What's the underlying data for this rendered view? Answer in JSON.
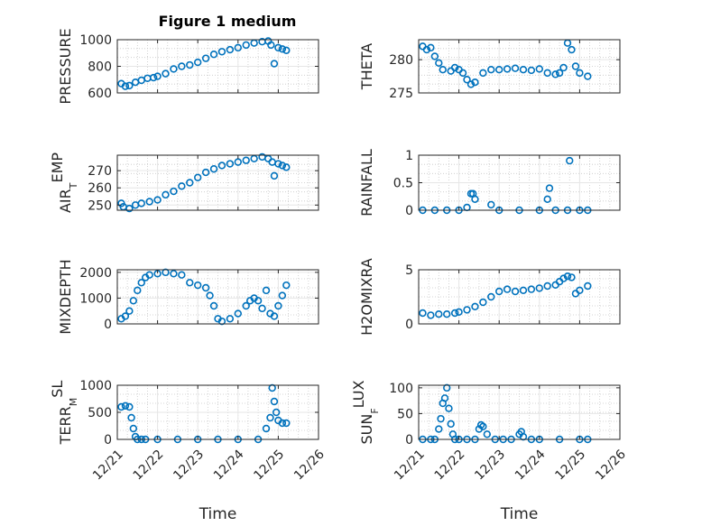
{
  "figure": {
    "title": "Figure 1 medium",
    "colors": {
      "marker": "#0072BD",
      "axis": "#262626",
      "grid": "#e6e6e6"
    }
  },
  "chart_data": [
    {
      "type": "scatter",
      "panel": "pressure",
      "title": "Figure 1 medium",
      "ylabel": "PRESSURE",
      "xlabel": "",
      "xlim": [
        21.0,
        26.0
      ],
      "ylim": [
        600,
        1000
      ],
      "yticks": [
        600,
        800,
        1000
      ],
      "grid": true,
      "x": [
        21.1,
        21.2,
        21.3,
        21.45,
        21.6,
        21.75,
        21.9,
        22.0,
        22.2,
        22.4,
        22.6,
        22.8,
        23.0,
        23.2,
        23.4,
        23.6,
        23.8,
        24.0,
        24.2,
        24.4,
        24.6,
        24.75,
        24.82,
        24.9,
        25.0,
        25.1,
        25.2
      ],
      "y": [
        670,
        650,
        655,
        680,
        695,
        710,
        715,
        725,
        745,
        780,
        800,
        810,
        830,
        860,
        890,
        910,
        925,
        940,
        960,
        975,
        985,
        990,
        960,
        820,
        940,
        930,
        920
      ]
    },
    {
      "type": "scatter",
      "panel": "theta",
      "ylabel": "THETA",
      "xlabel": "",
      "xlim": [
        21.0,
        26.0
      ],
      "ylim": [
        275,
        283
      ],
      "yticks": [
        275,
        280
      ],
      "grid": true,
      "x": [
        21.1,
        21.2,
        21.3,
        21.4,
        21.5,
        21.6,
        21.8,
        21.9,
        22.0,
        22.1,
        22.2,
        22.3,
        22.4,
        22.6,
        22.8,
        23.0,
        23.2,
        23.4,
        23.6,
        23.8,
        24.0,
        24.2,
        24.4,
        24.5,
        24.6,
        24.7,
        24.8,
        24.9,
        25.0,
        25.2
      ],
      "y": [
        282,
        281.5,
        281.8,
        280.5,
        279.5,
        278.5,
        278.3,
        278.8,
        278.5,
        278.0,
        277.0,
        276.3,
        276.6,
        278.0,
        278.5,
        278.5,
        278.6,
        278.7,
        278.5,
        278.4,
        278.6,
        278.0,
        277.8,
        278.0,
        278.8,
        282.5,
        281.5,
        279.0,
        278.0,
        277.5
      ]
    },
    {
      "type": "scatter",
      "panel": "airtemp",
      "ylabel": "AIR_TEMP",
      "xlabel": "",
      "xlim": [
        21.0,
        26.0
      ],
      "ylim": [
        247,
        279
      ],
      "yticks": [
        250,
        260,
        270
      ],
      "grid": true,
      "x": [
        21.1,
        21.15,
        21.3,
        21.45,
        21.6,
        21.8,
        22.0,
        22.2,
        22.4,
        22.6,
        22.8,
        23.0,
        23.2,
        23.4,
        23.6,
        23.8,
        24.0,
        24.2,
        24.4,
        24.6,
        24.75,
        24.85,
        24.9,
        25.0,
        25.1,
        25.2
      ],
      "y": [
        251,
        249,
        248,
        250,
        251,
        252,
        253,
        256,
        258,
        261,
        263,
        266,
        269,
        271,
        273,
        274,
        275,
        276,
        277,
        278,
        277,
        275,
        267,
        274,
        273,
        272
      ]
    },
    {
      "type": "scatter",
      "panel": "rainfall",
      "ylabel": "RAINFALL",
      "xlabel": "",
      "xlim": [
        21.0,
        26.0
      ],
      "ylim": [
        0,
        1
      ],
      "yticks": [
        0,
        0.5,
        1
      ],
      "grid": true,
      "x": [
        21.1,
        21.4,
        21.7,
        22.0,
        22.2,
        22.3,
        22.35,
        22.4,
        22.8,
        23.0,
        23.5,
        24.0,
        24.2,
        24.25,
        24.4,
        24.7,
        24.75,
        25.0,
        25.2
      ],
      "y": [
        0,
        0,
        0,
        0,
        0.05,
        0.3,
        0.3,
        0.2,
        0.1,
        0,
        0,
        0,
        0.2,
        0.4,
        0,
        0,
        0.9,
        0,
        0
      ]
    },
    {
      "type": "scatter",
      "panel": "mixdepth",
      "ylabel": "MIXDEPTH",
      "xlabel": "",
      "xlim": [
        21.0,
        26.0
      ],
      "ylim": [
        0,
        2100
      ],
      "yticks": [
        0,
        1000,
        2000
      ],
      "grid": true,
      "x": [
        21.1,
        21.2,
        21.3,
        21.4,
        21.5,
        21.6,
        21.7,
        21.8,
        22.0,
        22.2,
        22.4,
        22.6,
        22.8,
        23.0,
        23.2,
        23.3,
        23.4,
        23.5,
        23.6,
        23.8,
        24.0,
        24.2,
        24.3,
        24.4,
        24.5,
        24.6,
        24.7,
        24.8,
        24.9,
        25.0,
        25.1,
        25.2
      ],
      "y": [
        200,
        300,
        500,
        900,
        1300,
        1600,
        1800,
        1900,
        1950,
        2000,
        1950,
        1900,
        1600,
        1500,
        1400,
        1100,
        700,
        200,
        100,
        200,
        400,
        700,
        900,
        1000,
        900,
        600,
        1300,
        400,
        300,
        700,
        1100,
        1500
      ]
    },
    {
      "type": "scatter",
      "panel": "h2omixra",
      "ylabel": "H2OMIXRA",
      "xlabel": "",
      "xlim": [
        21.0,
        26.0
      ],
      "ylim": [
        0,
        5
      ],
      "yticks": [
        0,
        5
      ],
      "grid": true,
      "x": [
        21.1,
        21.3,
        21.5,
        21.7,
        21.9,
        22.0,
        22.2,
        22.4,
        22.6,
        22.8,
        23.0,
        23.2,
        23.4,
        23.6,
        23.8,
        24.0,
        24.2,
        24.4,
        24.5,
        24.6,
        24.7,
        24.8,
        24.9,
        25.0,
        25.2
      ],
      "y": [
        1.0,
        0.8,
        0.9,
        0.9,
        1.0,
        1.1,
        1.3,
        1.6,
        2.0,
        2.5,
        3.0,
        3.2,
        3.0,
        3.1,
        3.2,
        3.3,
        3.5,
        3.6,
        3.9,
        4.2,
        4.4,
        4.3,
        2.8,
        3.1,
        3.5
      ]
    },
    {
      "type": "scatter",
      "panel": "terrmsl",
      "ylabel": "TERR_MSL",
      "xlabel": "Time",
      "xlim": [
        21.0,
        26.0
      ],
      "ylim": [
        0,
        1000
      ],
      "yticks": [
        0,
        500,
        1000
      ],
      "xticks": [
        21,
        22,
        23,
        24,
        25,
        26
      ],
      "xticklabels": [
        "12/21",
        "12/22",
        "12/23",
        "12/24",
        "12/25",
        "12/26"
      ],
      "grid": true,
      "x": [
        21.1,
        21.2,
        21.3,
        21.35,
        21.4,
        21.45,
        21.5,
        21.6,
        21.7,
        22.0,
        22.5,
        23.0,
        23.5,
        24.0,
        24.5,
        24.7,
        24.8,
        24.85,
        24.9,
        24.95,
        25.0,
        25.1,
        25.2
      ],
      "y": [
        600,
        620,
        600,
        400,
        200,
        50,
        0,
        0,
        0,
        0,
        0,
        0,
        0,
        0,
        0,
        200,
        400,
        950,
        700,
        500,
        350,
        300,
        300
      ]
    },
    {
      "type": "scatter",
      "panel": "sunflux",
      "ylabel": "SUN_FLUX",
      "xlabel": "Time",
      "xlim": [
        21.0,
        26.0
      ],
      "ylim": [
        0,
        105
      ],
      "yticks": [
        0,
        50,
        100
      ],
      "xticks": [
        21,
        22,
        23,
        24,
        25,
        26
      ],
      "xticklabels": [
        "12/21",
        "12/22",
        "12/23",
        "12/24",
        "12/25",
        "12/26"
      ],
      "grid": true,
      "x": [
        21.1,
        21.3,
        21.4,
        21.5,
        21.55,
        21.6,
        21.65,
        21.7,
        21.75,
        21.8,
        21.85,
        21.9,
        22.0,
        22.2,
        22.4,
        22.5,
        22.55,
        22.6,
        22.7,
        22.9,
        23.1,
        23.3,
        23.5,
        23.55,
        23.6,
        23.8,
        24.0,
        24.5,
        25.0,
        25.2
      ],
      "y": [
        0,
        0,
        0,
        20,
        40,
        70,
        80,
        100,
        60,
        30,
        10,
        0,
        0,
        0,
        0,
        20,
        28,
        25,
        10,
        0,
        0,
        0,
        10,
        15,
        5,
        0,
        0,
        0,
        0,
        0
      ]
    }
  ]
}
